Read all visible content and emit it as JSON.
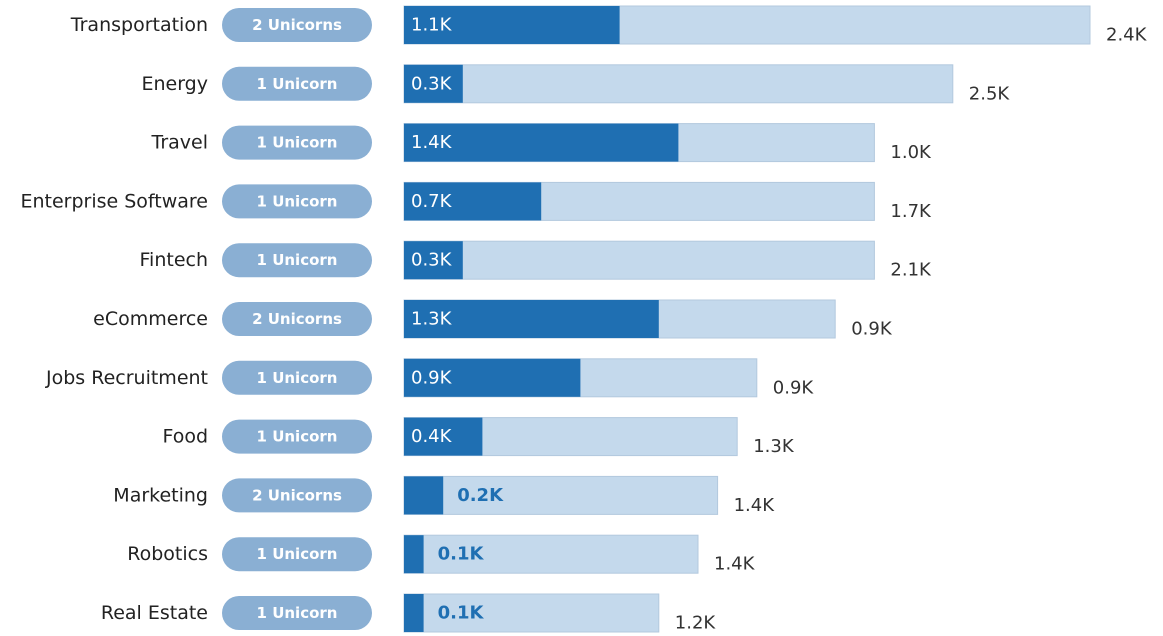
{
  "chart_data": {
    "type": "bar",
    "orientation": "horizontal",
    "categories": [
      "Transportation",
      "Energy",
      "Travel",
      "Enterprise Software",
      "Fintech",
      "eCommerce",
      "Jobs Recruitment",
      "Food",
      "Marketing",
      "Robotics",
      "Real Estate"
    ],
    "badges": [
      "2 Unicorns",
      "1 Unicorn",
      "1 Unicorn",
      "1 Unicorn",
      "1 Unicorn",
      "2 Unicorns",
      "1 Unicorn",
      "1 Unicorn",
      "2 Unicorns",
      "1 Unicorn",
      "1 Unicorn"
    ],
    "series": [
      {
        "values": [
          1.1,
          0.3,
          1.4,
          0.7,
          0.3,
          1.3,
          0.9,
          0.4,
          0.2,
          0.1,
          0.1
        ],
        "labels": [
          "1.1K",
          "0.3K",
          "1.4K",
          "0.7K",
          "0.3K",
          "1.3K",
          "0.9K",
          "0.4K",
          "0.2K",
          "0.1K",
          "0.1K"
        ],
        "color": "#1f6fb2"
      },
      {
        "values": [
          2.4,
          2.5,
          1.0,
          1.7,
          2.1,
          0.9,
          0.9,
          1.3,
          1.4,
          1.4,
          1.2
        ],
        "labels": [
          "2.4K",
          "2.5K",
          "1.0K",
          "1.7K",
          "2.1K",
          "0.9K",
          "0.9K",
          "1.3K",
          "1.4K",
          "1.4K",
          "1.2K"
        ],
        "color": "#c4d9ec"
      }
    ],
    "xlim": [
      0,
      3.5
    ],
    "grid": false,
    "legend": "none",
    "badge_color": "#8aafd3"
  }
}
